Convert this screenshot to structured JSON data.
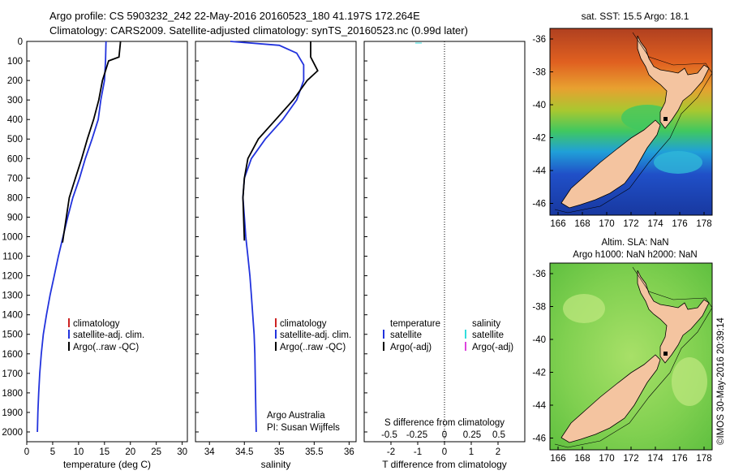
{
  "header": {
    "line1": "Argo profile: CS 5903232_242 22-May-2016 20160523_180 41.197S 172.264E",
    "line2": "Climatology: CARS2009. Satellite-adjusted climatology: synTS_20160523.nc (0.99d later)"
  },
  "colors": {
    "climatology": "#cc2222",
    "satellite": "#2233dd",
    "argo": "#000000",
    "sal_satellite": "#33dddd",
    "sal_argo": "#dd44dd",
    "land": "#f4c4a0"
  },
  "depth_ticks": [
    "0",
    "100",
    "200",
    "300",
    "400",
    "500",
    "600",
    "700",
    "800",
    "900",
    "1000",
    "1100",
    "1200",
    "1300",
    "1400",
    "1500",
    "1600",
    "1700",
    "1800",
    "1900",
    "2000"
  ],
  "panel1": {
    "xlabel": "temperature (deg C)",
    "xticks": [
      "0",
      "5",
      "10",
      "15",
      "20",
      "25",
      "30"
    ],
    "legend": [
      "climatology",
      "satellite-adj. clim.",
      "Argo(..raw -QC)"
    ]
  },
  "panel2": {
    "xlabel": "salinity",
    "xticks": [
      "34",
      "34.5",
      "35",
      "35.5",
      "36"
    ],
    "legend": [
      "climatology",
      "satellite-adj. clim.",
      "Argo(..raw -QC)"
    ],
    "credit1": "Argo Australia",
    "credit2": "PI: Susan Wijffels"
  },
  "panel3": {
    "legend_temp_title": "temperature",
    "legend_temp": [
      "satellite",
      "Argo(-adj)"
    ],
    "legend_sal_title": "salinity",
    "legend_sal": [
      "satellite",
      "Argo(-adj)"
    ],
    "s_title": "S difference from climatology",
    "s_ticks": [
      "-0.5",
      "-0.25",
      "0",
      "0.25",
      "0.5"
    ],
    "t_ticks": [
      "-2",
      "-1",
      "0",
      "1",
      "2"
    ],
    "xlabel": "T difference from climatology"
  },
  "map1": {
    "title": "sat. SST: 15.5 Argo: 18.1",
    "yticks": [
      "-36",
      "-38",
      "-40",
      "-42",
      "-44",
      "-46"
    ],
    "xticks": [
      "166",
      "168",
      "170",
      "172",
      "174",
      "176",
      "178"
    ]
  },
  "map2": {
    "title1": "Altim. SLA: NaN",
    "title2": "Argo h1000: NaN h2000: NaN",
    "yticks": [
      "-36",
      "-38",
      "-40",
      "-42",
      "-44",
      "-46"
    ],
    "xticks": [
      "166",
      "168",
      "170",
      "172",
      "174",
      "176",
      "178"
    ]
  },
  "stamp": "©IMOS 30-May-2016 20:39:14",
  "chart_data": [
    {
      "type": "line",
      "xlabel": "temperature (deg C)",
      "xlim": [
        0,
        31
      ],
      "ylim": [
        0,
        2050
      ],
      "series": [
        {
          "name": "satellite-adj. clim.",
          "x": [
            15.3,
            15.2,
            15.0,
            14.3,
            13.8,
            12.6,
            11.3,
            10.2,
            8.9,
            7.9,
            7.0,
            6.1,
            5.3,
            4.5,
            3.8,
            3.2,
            2.8,
            2.5,
            2.3,
            2.15,
            2.05
          ],
          "y": [
            0,
            100,
            200,
            300,
            400,
            500,
            600,
            700,
            800,
            900,
            1000,
            1100,
            1200,
            1300,
            1400,
            1500,
            1600,
            1700,
            1800,
            1900,
            2000
          ]
        },
        {
          "name": "Argo(..raw -QC)",
          "x": [
            18.1,
            17.8,
            15.8,
            14.6,
            13.9,
            12.9,
            11.7,
            10.6,
            9.4,
            8.2,
            6.9
          ],
          "y": [
            0,
            80,
            100,
            200,
            300,
            400,
            500,
            600,
            700,
            800,
            1030
          ]
        }
      ]
    },
    {
      "type": "line",
      "xlabel": "salinity",
      "xlim": [
        33.8,
        36.1
      ],
      "ylim": [
        0,
        2050
      ],
      "series": [
        {
          "name": "satellite-adj. clim.",
          "x": [
            34.3,
            35.0,
            35.25,
            35.35,
            35.35,
            35.25,
            35.05,
            34.8,
            34.6,
            34.5,
            34.48,
            34.5,
            34.52,
            34.55,
            34.58,
            34.6,
            34.62,
            34.64,
            34.65,
            34.66,
            34.67
          ],
          "y": [
            0,
            20,
            60,
            120,
            200,
            300,
            400,
            500,
            600,
            700,
            800,
            900,
            1000,
            1100,
            1200,
            1300,
            1400,
            1500,
            1600,
            1800,
            2000
          ]
        },
        {
          "name": "Argo(..raw -QC)",
          "x": [
            35.45,
            35.45,
            35.55,
            35.4,
            35.2,
            34.95,
            34.7,
            34.55,
            34.5,
            34.48,
            34.5
          ],
          "y": [
            0,
            80,
            150,
            200,
            300,
            400,
            500,
            600,
            700,
            800,
            1020
          ]
        }
      ]
    }
  ]
}
